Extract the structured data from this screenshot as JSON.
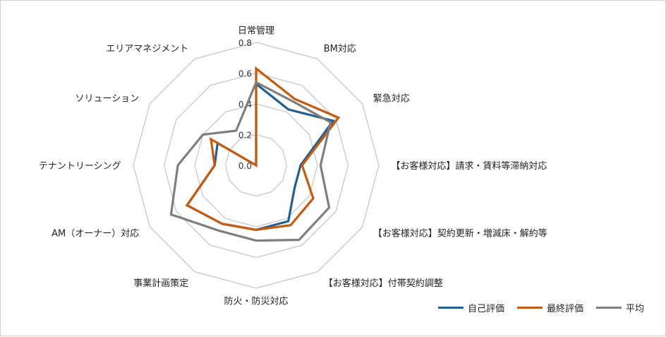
{
  "chart_data": {
    "type": "radar",
    "title": "",
    "categories": [
      "日常管理",
      "BM対応",
      "緊急対応",
      "【お客様対応】請求・賃料等滞納対応",
      "【お客様対応】契約更新・増減床・解約等",
      "【お客様対応】付帯契約調整",
      "防火・防災対応",
      "事業計画策定",
      "AM（オーナー）対応",
      "テナントリーシング",
      "ソリューション",
      "エリアマネジメント"
    ],
    "rlim": [
      0,
      0.8
    ],
    "ticks": [
      "0.0",
      "0.2",
      "0.4",
      "0.6",
      "0.8"
    ],
    "tick_values": [
      0,
      0.2,
      0.4,
      0.6,
      0.8
    ],
    "series": [
      {
        "name": "自己評価",
        "color": "#255e91",
        "values": [
          0.53,
          0.42,
          0.58,
          0.29,
          0.29,
          0.42,
          0.42,
          0.44,
          0.52,
          0.27,
          0.29,
          0.0
        ]
      },
      {
        "name": "最終評価",
        "color": "#c55a11",
        "values": [
          0.63,
          0.5,
          0.62,
          0.3,
          0.43,
          0.45,
          0.42,
          0.44,
          0.52,
          0.27,
          0.34,
          0.0
        ]
      },
      {
        "name": "平均",
        "color": "#7f7f7f",
        "values": [
          0.54,
          0.48,
          0.56,
          0.42,
          0.55,
          0.56,
          0.49,
          0.49,
          0.64,
          0.51,
          0.4,
          0.26
        ]
      }
    ],
    "legend_position": "bottom-right",
    "grid": true
  }
}
